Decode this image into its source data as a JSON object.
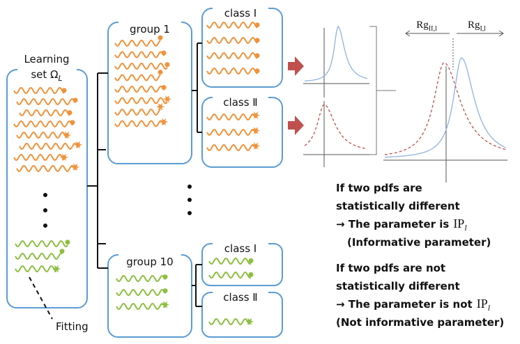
{
  "learning_set": {
    "line1": "Learning",
    "line2": "set Ω",
    "subscript": "L"
  },
  "groups": [
    {
      "label": "group 1",
      "classes": [
        "class Ⅰ",
        "class Ⅱ"
      ]
    },
    {
      "label": "group 10",
      "classes": [
        "class Ⅰ",
        "class Ⅱ"
      ]
    }
  ],
  "ranges": [
    {
      "text": "Rg",
      "subscript": "II,l"
    },
    {
      "text": "Rg",
      "subscript": "I,l"
    }
  ],
  "notes": [
    {
      "lines": [
        "If two pdfs are",
        "statistically different",
        "→ The parameter is",
        "(Informative parameter)"
      ],
      "symbol": "IP",
      "symbol_sub": "l"
    },
    {
      "lines": [
        "If two pdfs are not",
        "statistically different",
        "→ The parameter is not",
        "(Not informative parameter)"
      ],
      "symbol": "IP",
      "symbol_sub": "l"
    }
  ],
  "fitting": "Fitting"
}
